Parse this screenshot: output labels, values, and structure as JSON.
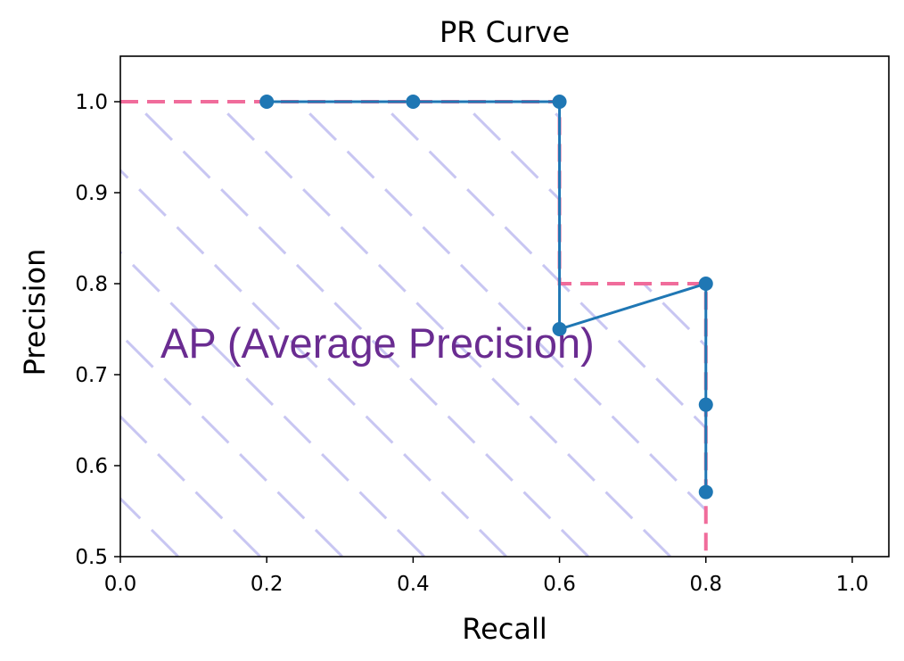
{
  "chart_data": {
    "type": "line",
    "title": "PR Curve",
    "xlabel": "Recall",
    "ylabel": "Precision",
    "xlim": [
      0.0,
      1.05
    ],
    "ylim": [
      0.5,
      1.05
    ],
    "xticks": [
      "0.0",
      "0.2",
      "0.4",
      "0.6",
      "0.8",
      "1.0"
    ],
    "yticks": [
      "0.5",
      "0.6",
      "0.7",
      "0.8",
      "0.9",
      "1.0"
    ],
    "grid": false,
    "series": [
      {
        "x": [
          0.2,
          0.4,
          0.6,
          0.6,
          0.8,
          0.8,
          0.8
        ],
        "y": [
          1.0,
          1.0,
          1.0,
          0.75,
          0.8,
          0.667,
          0.571
        ],
        "color": "#1f77b4",
        "marker": "circle"
      }
    ],
    "interpolated_envelope": {
      "x": [
        0.0,
        0.2,
        0.6,
        0.6,
        0.8,
        0.8
      ],
      "y": [
        1.0,
        1.0,
        1.0,
        0.8,
        0.8,
        0.5
      ],
      "color": "#f06c9b",
      "style": "dashed"
    },
    "shaded_area": {
      "pattern": "diagonal-hatch",
      "color": "#c8c6f2",
      "label": "AP (Average Precision)",
      "label_color": "#6a2c91"
    }
  }
}
